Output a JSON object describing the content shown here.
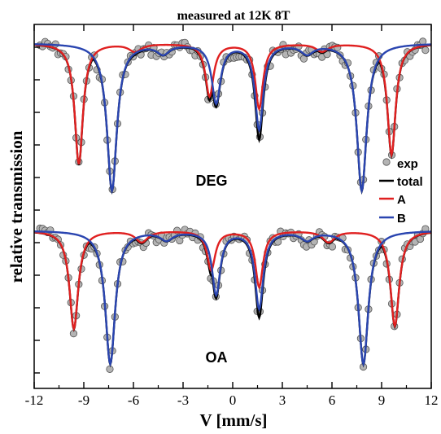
{
  "chart_data": {
    "type": "line",
    "title": "measured at 12K 8T",
    "xlabel": "V [mm/s]",
    "ylabel": "relative transmission",
    "xlim": [
      -12,
      12
    ],
    "xticks": [
      "-12",
      "-9",
      "-6",
      "-3",
      "0",
      "3",
      "6",
      "9",
      "12"
    ],
    "grid": false,
    "legend": {
      "placement": "right",
      "entries": [
        {
          "label": "exp",
          "marker": "circle",
          "color": "#b4b4b4"
        },
        {
          "label": "total",
          "marker": "line",
          "color": "#000000"
        },
        {
          "label": "A",
          "marker": "line",
          "color": "#e02020"
        },
        {
          "label": "B",
          "marker": "line",
          "color": "#2a45b0"
        }
      ]
    },
    "panels": [
      {
        "label": "DEG",
        "sites": {
          "A": {
            "lines": [
              {
                "x": -9.3,
                "depth": 0.78,
                "width": 0.3
              },
              {
                "x": -1.4,
                "depth": 0.34,
                "width": 0.3
              },
              {
                "x": 1.6,
                "depth": 0.42,
                "width": 0.28
              },
              {
                "x": 9.6,
                "depth": 0.72,
                "width": 0.3
              },
              {
                "x": -5.9,
                "depth": 0.05,
                "width": 0.45
              },
              {
                "x": 5.4,
                "depth": 0.05,
                "width": 0.45
              }
            ]
          },
          "B": {
            "lines": [
              {
                "x": -7.3,
                "depth": 0.95,
                "width": 0.36
              },
              {
                "x": -1.0,
                "depth": 0.38,
                "width": 0.32
              },
              {
                "x": 1.6,
                "depth": 0.55,
                "width": 0.3
              },
              {
                "x": 7.8,
                "depth": 0.95,
                "width": 0.36
              },
              {
                "x": -4.2,
                "depth": 0.06,
                "width": 0.45
              },
              {
                "x": 4.5,
                "depth": 0.06,
                "width": 0.45
              }
            ]
          }
        }
      },
      {
        "label": "OA",
        "sites": {
          "A": {
            "lines": [
              {
                "x": -9.6,
                "depth": 0.7,
                "width": 0.32
              },
              {
                "x": -1.3,
                "depth": 0.28,
                "width": 0.3
              },
              {
                "x": 1.6,
                "depth": 0.4,
                "width": 0.28
              },
              {
                "x": 9.8,
                "depth": 0.68,
                "width": 0.32
              },
              {
                "x": -5.5,
                "depth": 0.08,
                "width": 0.45
              },
              {
                "x": 5.8,
                "depth": 0.08,
                "width": 0.45
              }
            ]
          },
          "B": {
            "lines": [
              {
                "x": -7.4,
                "depth": 0.95,
                "width": 0.36
              },
              {
                "x": -1.0,
                "depth": 0.45,
                "width": 0.3
              },
              {
                "x": 1.6,
                "depth": 0.55,
                "width": 0.3
              },
              {
                "x": 7.9,
                "depth": 0.95,
                "width": 0.36
              },
              {
                "x": -4.0,
                "depth": 0.06,
                "width": 0.45
              },
              {
                "x": 4.5,
                "depth": 0.06,
                "width": 0.45
              }
            ]
          }
        }
      }
    ]
  }
}
